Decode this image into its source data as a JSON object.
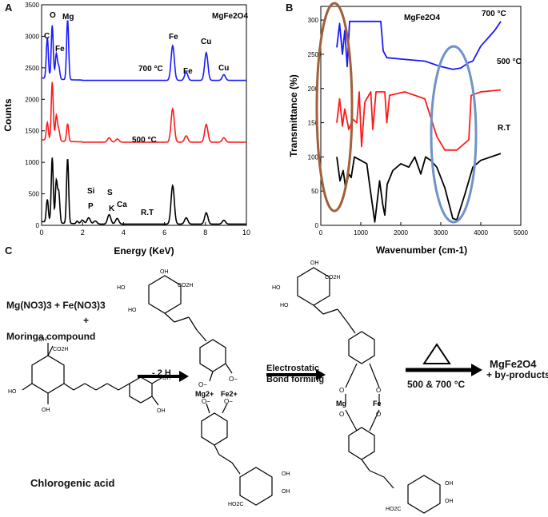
{
  "panels": {
    "a": "A",
    "b": "B",
    "c": "C"
  },
  "chart_data": [
    {
      "type": "line",
      "panel": "A",
      "title": "MgFe2O4",
      "xlabel": "Energy (KeV)",
      "ylabel": "Counts",
      "xlim": [
        0,
        10
      ],
      "ylim": [
        0,
        3500
      ],
      "xticks": [
        0,
        2,
        4,
        6,
        8,
        10
      ],
      "yticks": [
        0,
        500,
        1000,
        1500,
        2000,
        2500,
        3000,
        3500
      ],
      "series": [
        {
          "name": "700 °C",
          "color": "#1a1aff",
          "baseline": 2300,
          "peaks": [
            [
              0.28,
              2950
            ],
            [
              0.52,
              3150
            ],
            [
              0.72,
              2700
            ],
            [
              0.84,
              2500
            ],
            [
              1.27,
              3250
            ],
            [
              6.4,
              2850
            ],
            [
              7.06,
              2430
            ],
            [
              8.04,
              2740
            ],
            [
              8.9,
              2390
            ]
          ]
        },
        {
          "name": "500 °C",
          "color": "#ff1a1a",
          "baseline": 1320,
          "peaks": [
            [
              0.28,
              1600
            ],
            [
              0.52,
              2250
            ],
            [
              0.72,
              1720
            ],
            [
              0.84,
              1500
            ],
            [
              1.27,
              1600
            ],
            [
              3.3,
              1390
            ],
            [
              3.7,
              1370
            ],
            [
              6.4,
              1850
            ],
            [
              7.06,
              1420
            ],
            [
              8.04,
              1600
            ],
            [
              8.9,
              1390
            ]
          ]
        },
        {
          "name": "R.T",
          "color": "#000000",
          "baseline": 20,
          "peaks": [
            [
              0.28,
              380
            ],
            [
              0.52,
              1050
            ],
            [
              0.72,
              680
            ],
            [
              0.84,
              500
            ],
            [
              1.27,
              1050
            ],
            [
              1.74,
              60
            ],
            [
              2.0,
              80
            ],
            [
              2.3,
              120
            ],
            [
              2.62,
              70
            ],
            [
              3.3,
              170
            ],
            [
              3.69,
              110
            ],
            [
              6.4,
              630
            ],
            [
              7.06,
              120
            ],
            [
              8.04,
              200
            ],
            [
              8.9,
              80
            ]
          ]
        }
      ],
      "annotations": [
        "C",
        "O",
        "Mg",
        "Fe",
        "Fe",
        "Fe",
        "Cu",
        "Cu",
        "Si",
        "P",
        "S",
        "K",
        "Ca",
        "700 °C",
        "500 °C",
        "R.T"
      ]
    },
    {
      "type": "line",
      "panel": "B",
      "title": "MgFe2O4",
      "xlabel": "Wavenumber (cm-1)",
      "ylabel": "Transmittance (%)",
      "xlim": [
        0,
        5000
      ],
      "ylim": [
        0,
        320
      ],
      "xticks": [
        0,
        1000,
        2000,
        3000,
        4000,
        5000
      ],
      "yticks": [
        0,
        50,
        100,
        150,
        200,
        250,
        300
      ],
      "series": [
        {
          "name": "700 °C",
          "color": "#1a1aff",
          "points": [
            [
              400,
              260
            ],
            [
              470,
              295
            ],
            [
              540,
              250
            ],
            [
              600,
              285
            ],
            [
              660,
              232
            ],
            [
              720,
              298
            ],
            [
              1000,
              298
            ],
            [
              1500,
              298
            ],
            [
              1560,
              255
            ],
            [
              1650,
              245
            ],
            [
              2000,
              243
            ],
            [
              2600,
              240
            ],
            [
              3000,
              232
            ],
            [
              3300,
              228
            ],
            [
              3500,
              230
            ],
            [
              3700,
              238
            ],
            [
              3800,
              240
            ],
            [
              4000,
              262
            ],
            [
              4200,
              275
            ],
            [
              4350,
              285
            ],
            [
              4500,
              298
            ]
          ]
        },
        {
          "name": "500 °C",
          "color": "#ff1a1a",
          "points": [
            [
              400,
              150
            ],
            [
              470,
              185
            ],
            [
              540,
              145
            ],
            [
              600,
              170
            ],
            [
              700,
              140
            ],
            [
              800,
              155
            ],
            [
              900,
              150
            ],
            [
              960,
              195
            ],
            [
              1020,
              115
            ],
            [
              1100,
              180
            ],
            [
              1250,
              195
            ],
            [
              1300,
              140
            ],
            [
              1380,
              195
            ],
            [
              1600,
              195
            ],
            [
              1650,
              150
            ],
            [
              1720,
              190
            ],
            [
              2100,
              195
            ],
            [
              2600,
              185
            ],
            [
              2900,
              130
            ],
            [
              3100,
              110
            ],
            [
              3400,
              110
            ],
            [
              3700,
              125
            ],
            [
              3760,
              190
            ],
            [
              4000,
              195
            ],
            [
              4500,
              198
            ]
          ]
        },
        {
          "name": "R.T",
          "color": "#000000",
          "points": [
            [
              400,
              100
            ],
            [
              480,
              65
            ],
            [
              560,
              80
            ],
            [
              620,
              55
            ],
            [
              700,
              75
            ],
            [
              760,
              70
            ],
            [
              840,
              100
            ],
            [
              1000,
              95
            ],
            [
              1150,
              90
            ],
            [
              1230,
              55
            ],
            [
              1350,
              5
            ],
            [
              1400,
              30
            ],
            [
              1470,
              65
            ],
            [
              1550,
              30
            ],
            [
              1600,
              15
            ],
            [
              1660,
              60
            ],
            [
              1800,
              80
            ],
            [
              2000,
              90
            ],
            [
              2200,
              85
            ],
            [
              2350,
              100
            ],
            [
              2500,
              75
            ],
            [
              2620,
              100
            ],
            [
              2750,
              95
            ],
            [
              2900,
              85
            ],
            [
              3100,
              55
            ],
            [
              3300,
              10
            ],
            [
              3400,
              8
            ],
            [
              3600,
              45
            ],
            [
              3800,
              85
            ],
            [
              4000,
              95
            ],
            [
              4500,
              105
            ]
          ]
        }
      ],
      "annotations": [
        "700 °C",
        "500 °C",
        "R.T"
      ]
    }
  ],
  "scheme": {
    "reactants_line1": "Mg(NO3)3  +  Fe(NO3)3",
    "plus": "+",
    "moringa": "Moringa compound",
    "chlorogenic_acid": "Chlorogenic acid",
    "step1": "- 2 H",
    "step2_line1": "Electrostatic",
    "step2_line2": "Bond forming",
    "step3": "500 & 700 °C",
    "product": "MgFe2O4",
    "byproducts": "+ by-products",
    "ion_mg": "Mg2+",
    "ion_fe": "Fe2+",
    "complex_mg": "Mg",
    "complex_fe": "Fe",
    "atoms": {
      "oh": "OH",
      "ho": "HO",
      "o": "O",
      "o_minus": "O−",
      "co2h": "CO2H",
      "ho2c": "HO2C"
    }
  }
}
